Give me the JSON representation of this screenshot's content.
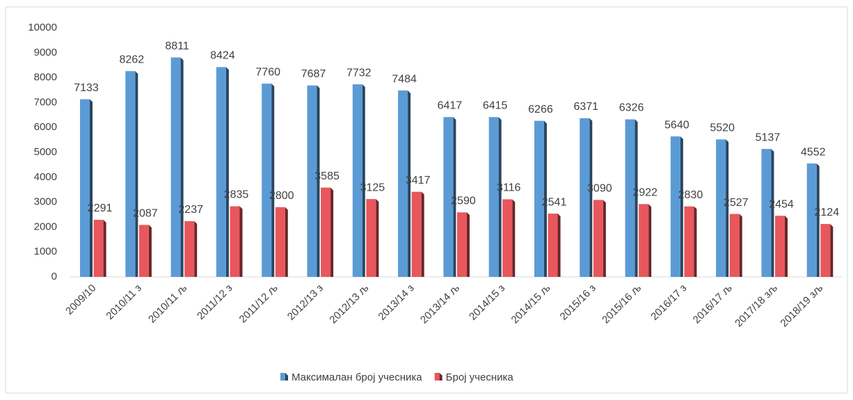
{
  "chart_data": {
    "type": "bar",
    "categories": [
      "2009/10",
      "2010/11 з",
      "2010/11 љ",
      "2011/12 з",
      "2011/12 љ",
      "2012/13 з",
      "2012/13 љ",
      "2013/14 з",
      "2013/14 љ",
      "2014/15 з",
      "2014/15 љ",
      "2015/16 з",
      "2015/16 љ",
      "2016/17 з",
      "2016/17 љ",
      "2017/18 зљ",
      "2018/19 зљ"
    ],
    "series": [
      {
        "name": "Максималан број учесника",
        "color": "#5b9bd5",
        "values": [
          7133,
          8262,
          8811,
          8424,
          7760,
          7687,
          7732,
          7484,
          6417,
          6415,
          6266,
          6371,
          6326,
          5640,
          5520,
          5137,
          4552
        ]
      },
      {
        "name": "Број учесника",
        "color": "#e8575c",
        "values": [
          2291,
          2087,
          2237,
          2835,
          2800,
          3585,
          3125,
          3417,
          2590,
          3116,
          2541,
          3090,
          2922,
          2830,
          2527,
          2454,
          2124
        ]
      }
    ],
    "ylim": [
      0,
      10000
    ],
    "yticks": [
      0,
      1000,
      2000,
      3000,
      4000,
      5000,
      6000,
      7000,
      8000,
      9000,
      10000
    ],
    "legend": "bottom"
  }
}
